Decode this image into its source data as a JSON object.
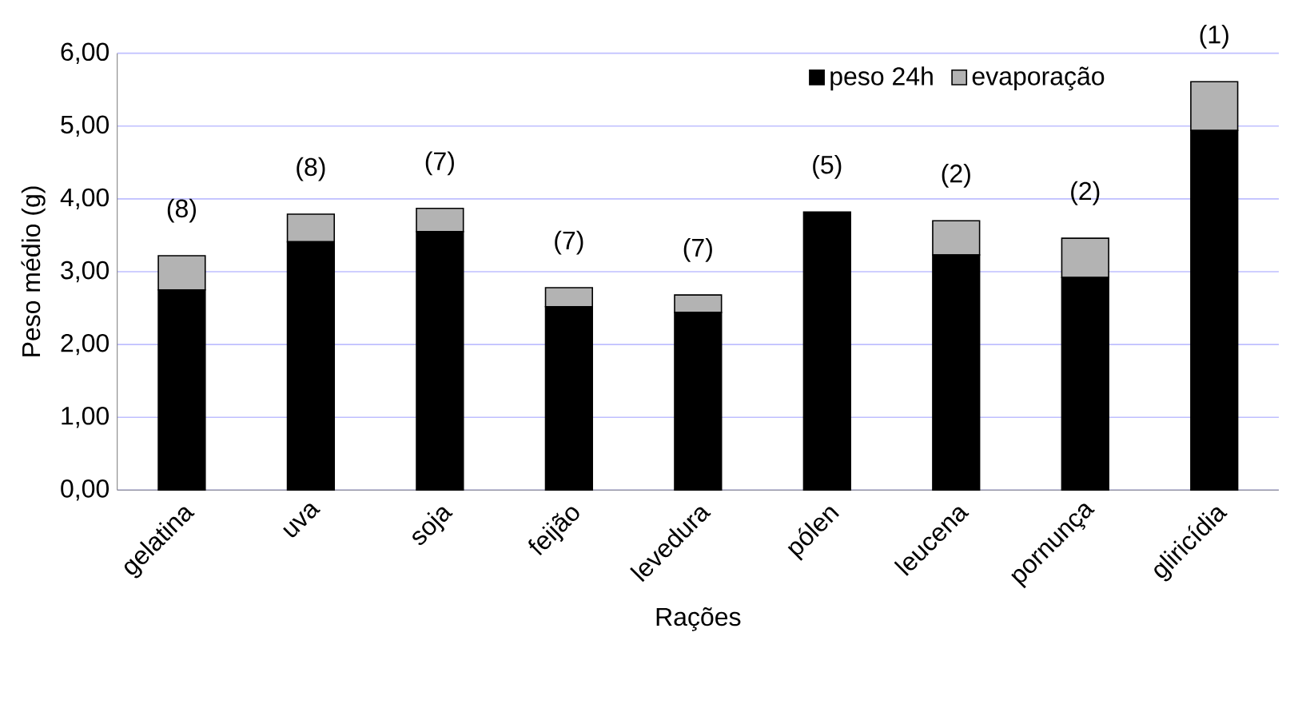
{
  "chart_data": {
    "type": "bar",
    "stacked": true,
    "xlabel": "Rações",
    "ylabel": "Peso médio (g)",
    "categories": [
      "gelatina",
      "uva",
      "soja",
      "feijão",
      "levedura",
      "pólen",
      "leucena",
      "pornunça",
      "gliricídia"
    ],
    "series": [
      {
        "name": "peso 24h",
        "color": "#000000",
        "values": [
          2.75,
          3.41,
          3.55,
          2.52,
          2.44,
          3.82,
          3.23,
          2.92,
          4.94
        ]
      },
      {
        "name": "evaporação",
        "color": "#b3b3b3",
        "values": [
          0.47,
          0.38,
          0.32,
          0.26,
          0.24,
          0,
          0.47,
          0.54,
          0.67
        ]
      }
    ],
    "ylim": [
      0,
      6
    ],
    "yticks": [
      {
        "value": 0,
        "label": "0,00"
      },
      {
        "value": 1,
        "label": "1,00"
      },
      {
        "value": 2,
        "label": "2,00"
      },
      {
        "value": 3,
        "label": "3,00"
      },
      {
        "value": 4,
        "label": "4,00"
      },
      {
        "value": 5,
        "label": "5,00"
      },
      {
        "value": 6,
        "label": "6,00"
      }
    ],
    "grid": "y",
    "legend": "top right",
    "annotations": [
      {
        "text": "(8)",
        "x": "gelatina",
        "y": 3.22
      },
      {
        "text": "(8)",
        "x": "uva",
        "y": 3.79
      },
      {
        "text": "(7)",
        "x": "soja",
        "y": 3.87
      },
      {
        "text": "(7)",
        "x": "feijão",
        "y": 2.78
      },
      {
        "text": "(7)",
        "x": "levedura",
        "y": 2.68
      },
      {
        "text": "(5)",
        "x": "pólen",
        "y": 3.82
      },
      {
        "text": "(2)",
        "x": "leucena",
        "y": 3.7
      },
      {
        "text": "(2)",
        "x": "pornunça",
        "y": 3.46
      },
      {
        "text": "(1)",
        "x": "gliricídia",
        "y": 5.61
      }
    ]
  }
}
